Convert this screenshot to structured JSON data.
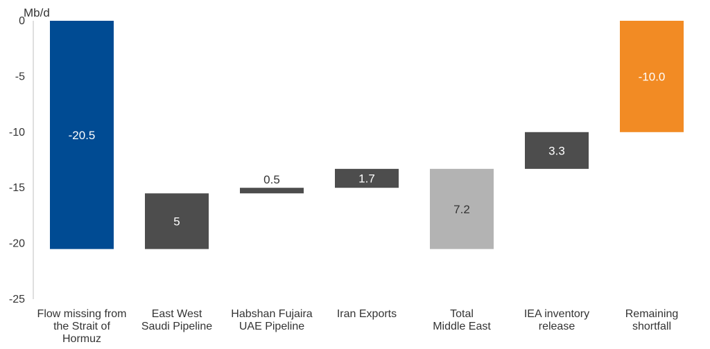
{
  "chart_data": {
    "type": "bar",
    "subtype": "waterfall",
    "unit_label": "Mb/d",
    "ylim": [
      -25,
      0
    ],
    "yticks": [
      0,
      -5,
      -10,
      -15,
      -20,
      -25
    ],
    "grid": false,
    "legend": "none",
    "categories": [
      [
        "Flow missing from",
        "the Strait of",
        "Hormuz"
      ],
      [
        "East West",
        "Saudi Pipeline"
      ],
      [
        "Habshan Fujaira",
        "UAE Pipeline"
      ],
      [
        "Iran Exports"
      ],
      [
        "Total",
        "Middle East"
      ],
      [
        "IEA inventory",
        "release"
      ],
      [
        "Remaining",
        "shortfall"
      ]
    ],
    "bars": [
      {
        "base": 0,
        "top": -20.5,
        "value_label": "-20.5",
        "color": "#004b93",
        "label_color": "#ffffff",
        "label_position": "inside"
      },
      {
        "base": -20.5,
        "top": -15.5,
        "value_label": "5",
        "color": "#4d4d4d",
        "label_color": "#ffffff",
        "label_position": "inside"
      },
      {
        "base": -15.5,
        "top": -15.0,
        "value_label": "0.5",
        "color": "#4d4d4d",
        "label_color": "#333333",
        "label_position": "above"
      },
      {
        "base": -15.0,
        "top": -13.3,
        "value_label": "1.7",
        "color": "#4d4d4d",
        "label_color": "#ffffff",
        "label_position": "inside"
      },
      {
        "base": -20.5,
        "top": -13.3,
        "value_label": "7.2",
        "color": "#b3b3b3",
        "label_color": "#333333",
        "label_position": "inside"
      },
      {
        "base": -13.3,
        "top": -10.0,
        "value_label": "3.3",
        "color": "#4d4d4d",
        "label_color": "#ffffff",
        "label_position": "inside"
      },
      {
        "base": 0,
        "top": -10.0,
        "value_label": "-10.0",
        "color": "#f28b24",
        "label_color": "#ffffff",
        "label_position": "inside"
      }
    ],
    "colors": {
      "axis": "#bfbfbf",
      "text": "#333333"
    }
  }
}
